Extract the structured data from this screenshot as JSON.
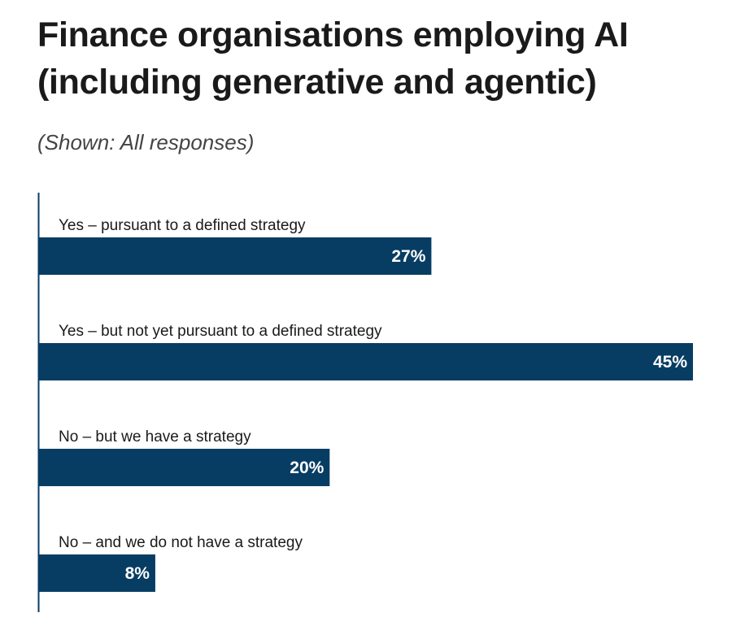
{
  "title": "Finance organisations employing AI (including generative and agentic)",
  "subtitle": "(Shown: All responses)",
  "colors": {
    "bar": "#083d63",
    "axis": "#083d63",
    "value_text": "#ffffff",
    "label_text": "#1a1a1a"
  },
  "chart_data": {
    "type": "bar",
    "orientation": "horizontal",
    "title": "Finance organisations employing AI (including generative and agentic)",
    "subtitle": "(Shown: All responses)",
    "categories": [
      "Yes – pursuant to a defined strategy",
      "Yes – but not yet pursuant to a defined strategy",
      "No – but we have a strategy",
      "No – and we do not have a strategy"
    ],
    "values": [
      27,
      45,
      20,
      8
    ],
    "value_labels": [
      "27%",
      "45%",
      "20%",
      "8%"
    ],
    "unit": "%",
    "xlim": [
      0,
      45
    ],
    "xlabel": "",
    "ylabel": "",
    "grid": false,
    "legend": "none"
  }
}
